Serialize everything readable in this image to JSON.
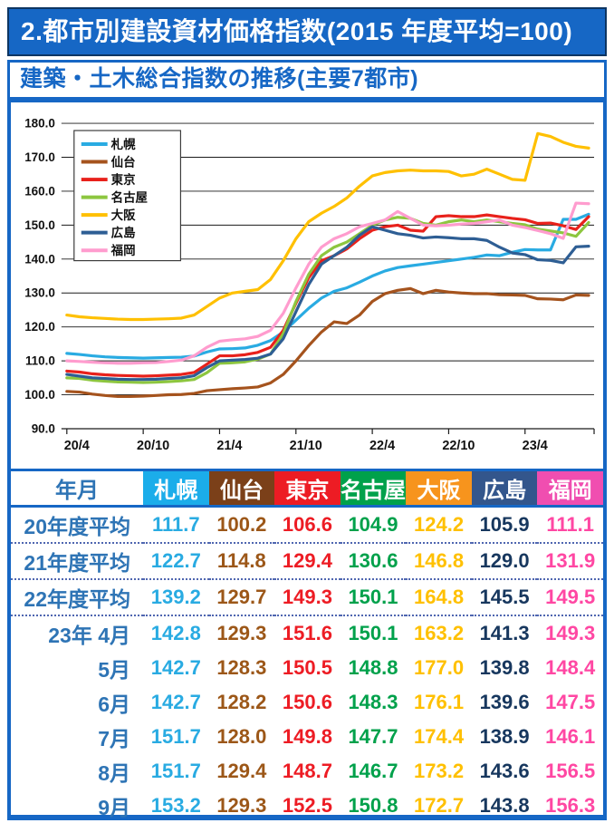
{
  "page": {
    "title": "2.都市別建設資材価格指数(2015 年度平均=100)",
    "subtitle": "建築・土木総合指数の推移(主要7都市)"
  },
  "colors": {
    "accent_blue": "#1667c5",
    "banner_bg": "#1667c5",
    "row_label_blue": "#2e74b5"
  },
  "chart_data": {
    "type": "line",
    "title": "",
    "xlabel": "",
    "ylabel": "",
    "ylim": [
      90,
      180
    ],
    "y_step": 10,
    "grid": "horizontal",
    "legend_position": "top-left",
    "x": [
      "20/4",
      "20/5",
      "20/6",
      "20/7",
      "20/8",
      "20/9",
      "20/10",
      "20/11",
      "20/12",
      "21/1",
      "21/2",
      "21/3",
      "21/4",
      "21/5",
      "21/6",
      "21/7",
      "21/8",
      "21/9",
      "21/10",
      "21/11",
      "21/12",
      "22/1",
      "22/2",
      "22/3",
      "22/4",
      "22/5",
      "22/6",
      "22/7",
      "22/8",
      "22/9",
      "22/10",
      "22/11",
      "22/12",
      "23/1",
      "23/2",
      "23/3",
      "23/4",
      "23/5",
      "23/6",
      "23/7",
      "23/8",
      "23/9"
    ],
    "x_tick_indices": [
      0,
      6,
      12,
      18,
      24,
      30,
      36
    ],
    "x_tick_labels": [
      "20/4",
      "20/10",
      "21/4",
      "21/10",
      "22/4",
      "22/10",
      "23/4"
    ],
    "series": [
      {
        "key": "sapporo",
        "name": "札幌",
        "color": "#29abe2",
        "values": [
          112.2,
          111.9,
          111.5,
          111.2,
          111.0,
          110.9,
          110.8,
          110.9,
          111.0,
          111.1,
          111.4,
          112.6,
          113.5,
          113.6,
          113.8,
          114.6,
          116.0,
          118.5,
          122.0,
          125.5,
          128.5,
          130.5,
          131.5,
          133.2,
          135.0,
          136.5,
          137.5,
          138.0,
          138.5,
          139.0,
          139.5,
          140.0,
          140.5,
          141.2,
          141.0,
          142.0,
          142.8,
          142.7,
          142.7,
          151.7,
          151.7,
          153.2
        ]
      },
      {
        "key": "sendai",
        "name": "仙台",
        "color": "#a5531d",
        "values": [
          101.0,
          100.8,
          100.2,
          99.8,
          99.5,
          99.5,
          99.6,
          99.8,
          100.0,
          100.1,
          100.4,
          101.2,
          101.5,
          101.8,
          102.0,
          102.3,
          103.5,
          106.0,
          110.0,
          114.5,
          118.5,
          121.5,
          121.0,
          123.5,
          127.5,
          129.8,
          130.8,
          131.3,
          129.8,
          130.8,
          130.3,
          130.0,
          129.8,
          129.8,
          129.5,
          129.4,
          129.3,
          128.3,
          128.2,
          128.0,
          129.4,
          129.3
        ]
      },
      {
        "key": "tokyo",
        "name": "東京",
        "color": "#e8211b",
        "values": [
          107.0,
          106.7,
          106.2,
          105.9,
          105.7,
          105.6,
          105.5,
          105.6,
          105.8,
          106.0,
          106.6,
          109.0,
          111.5,
          111.5,
          111.8,
          112.5,
          114.0,
          119.0,
          127.0,
          134.5,
          139.5,
          141.0,
          143.0,
          146.0,
          148.5,
          149.5,
          150.0,
          148.5,
          148.2,
          152.5,
          152.8,
          152.5,
          152.5,
          153.0,
          152.5,
          152.0,
          151.6,
          150.5,
          150.6,
          149.8,
          148.7,
          152.5
        ]
      },
      {
        "key": "nagoya",
        "name": "名古屋",
        "color": "#8dc63f",
        "values": [
          105.0,
          104.8,
          104.3,
          104.0,
          103.8,
          103.7,
          103.6,
          103.7,
          103.9,
          104.1,
          104.5,
          106.5,
          109.3,
          109.4,
          109.7,
          110.5,
          112.0,
          118.0,
          127.5,
          135.5,
          141.0,
          143.5,
          145.0,
          147.5,
          150.0,
          151.5,
          152.3,
          152.0,
          150.5,
          150.0,
          151.0,
          151.5,
          151.0,
          151.5,
          151.0,
          150.5,
          150.1,
          148.8,
          148.3,
          147.7,
          146.7,
          150.8
        ]
      },
      {
        "key": "osaka",
        "name": "大阪",
        "color": "#ffc000",
        "values": [
          123.5,
          123.0,
          122.7,
          122.5,
          122.3,
          122.2,
          122.2,
          122.3,
          122.4,
          122.6,
          123.5,
          126.0,
          128.5,
          130.0,
          130.5,
          131.0,
          134.0,
          139.5,
          146.0,
          151.0,
          153.5,
          155.5,
          158.0,
          161.5,
          164.5,
          165.5,
          166.0,
          166.2,
          166.0,
          166.0,
          165.8,
          164.5,
          165.0,
          166.5,
          165.0,
          163.5,
          163.2,
          177.0,
          176.1,
          174.4,
          173.2,
          172.7
        ]
      },
      {
        "key": "hiroshima",
        "name": "広島",
        "color": "#2e5e94",
        "values": [
          106.0,
          105.5,
          105.0,
          104.8,
          104.6,
          104.5,
          104.5,
          104.6,
          104.8,
          105.0,
          105.6,
          108.0,
          110.0,
          110.2,
          110.4,
          110.8,
          112.0,
          116.5,
          124.5,
          132.5,
          138.5,
          141.0,
          143.5,
          147.0,
          149.5,
          148.5,
          147.5,
          147.0,
          146.2,
          146.5,
          146.3,
          146.0,
          146.0,
          145.5,
          143.5,
          141.8,
          141.3,
          139.8,
          139.6,
          138.9,
          143.6,
          143.8
        ]
      },
      {
        "key": "fukuoka",
        "name": "福岡",
        "color": "#ff9cce",
        "values": [
          110.0,
          109.8,
          109.6,
          109.4,
          109.3,
          109.3,
          109.4,
          109.5,
          109.8,
          110.2,
          111.5,
          114.0,
          115.8,
          116.2,
          116.5,
          117.2,
          119.0,
          124.0,
          131.5,
          138.5,
          143.5,
          146.0,
          147.5,
          149.5,
          150.5,
          151.5,
          154.0,
          152.0,
          150.0,
          149.8,
          150.0,
          150.3,
          150.5,
          151.0,
          151.5,
          150.0,
          149.3,
          148.4,
          147.5,
          146.1,
          156.5,
          156.3
        ]
      }
    ]
  },
  "table": {
    "label_header": "年月",
    "columns": [
      {
        "key": "sapporo",
        "label": "札幌",
        "header_bg": "#1badea",
        "value_color": "#29abe2"
      },
      {
        "key": "sendai",
        "label": "仙台",
        "header_bg": "#7b4019",
        "value_color": "#9c5718"
      },
      {
        "key": "tokyo",
        "label": "東京",
        "header_bg": "#ed1c24",
        "value_color": "#ed1c24"
      },
      {
        "key": "nagoya",
        "label": "名古屋",
        "header_bg": "#00a14b",
        "value_color": "#00a14b"
      },
      {
        "key": "osaka",
        "label": "大阪",
        "header_bg": "#f7941d",
        "value_color": "#ffc000"
      },
      {
        "key": "hiroshima",
        "label": "広島",
        "header_bg": "#33568c",
        "value_color": "#17375e"
      },
      {
        "key": "fukuoka",
        "label": "福岡",
        "header_bg": "#f04eb0",
        "value_color": "#ff47a3"
      }
    ],
    "rows": [
      {
        "label": "20年度平均",
        "group": "average",
        "values": [
          "111.7",
          "100.2",
          "106.6",
          "104.9",
          "124.2",
          "105.9",
          "111.1"
        ]
      },
      {
        "label": "21年度平均",
        "group": "average",
        "values": [
          "122.7",
          "114.8",
          "129.4",
          "130.6",
          "146.8",
          "129.0",
          "131.9"
        ]
      },
      {
        "label": "22年度平均",
        "group": "average",
        "values": [
          "139.2",
          "129.7",
          "149.3",
          "150.1",
          "164.8",
          "145.5",
          "149.5"
        ]
      },
      {
        "label": "23年 4月",
        "group": "monthly",
        "values": [
          "142.8",
          "129.3",
          "151.6",
          "150.1",
          "163.2",
          "141.3",
          "149.3"
        ]
      },
      {
        "label": "5月",
        "group": "monthly",
        "values": [
          "142.7",
          "128.3",
          "150.5",
          "148.8",
          "177.0",
          "139.8",
          "148.4"
        ]
      },
      {
        "label": "6月",
        "group": "monthly",
        "values": [
          "142.7",
          "128.2",
          "150.6",
          "148.3",
          "176.1",
          "139.6",
          "147.5"
        ]
      },
      {
        "label": "7月",
        "group": "monthly",
        "values": [
          "151.7",
          "128.0",
          "149.8",
          "147.7",
          "174.4",
          "138.9",
          "146.1"
        ]
      },
      {
        "label": "8月",
        "group": "monthly",
        "values": [
          "151.7",
          "129.4",
          "148.7",
          "146.7",
          "173.2",
          "143.6",
          "156.5"
        ]
      },
      {
        "label": "9月",
        "group": "monthly",
        "values": [
          "153.2",
          "129.3",
          "152.5",
          "150.8",
          "172.7",
          "143.8",
          "156.3"
        ]
      }
    ]
  }
}
